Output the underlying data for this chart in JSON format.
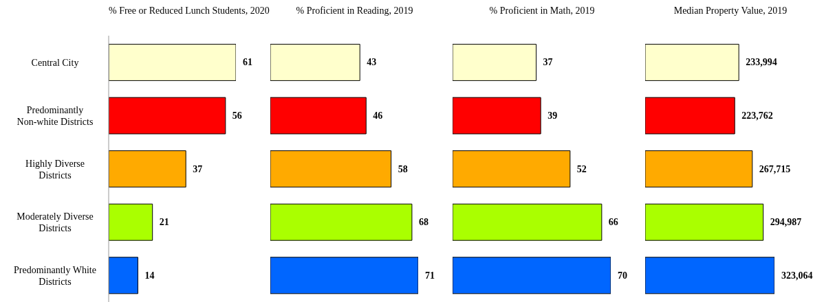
{
  "chart_data": [
    {
      "type": "bar",
      "orientation": "horizontal",
      "title": "% Free or Reduced Lunch Students, 2020",
      "categories": [
        "Central City",
        "Predominantly Non-white Districts",
        "Highly Diverse Districts",
        "Moderately Diverse Districts",
        "Predominantly White Districts"
      ],
      "values": [
        61,
        56,
        37,
        21,
        14
      ],
      "colors": [
        "#ffffcc",
        "#ff0000",
        "#ffaa00",
        "#aaff00",
        "#0066ff"
      ],
      "data_labels": true,
      "tick_labels": "y"
    },
    {
      "type": "bar",
      "orientation": "horizontal",
      "title": "% Proficient in Reading, 2019",
      "values": [
        43,
        46,
        58,
        68,
        71
      ],
      "colors": [
        "#ffffcc",
        "#ff0000",
        "#ffaa00",
        "#aaff00",
        "#0066ff"
      ],
      "data_labels": true,
      "tick_labels": false
    },
    {
      "type": "bar",
      "orientation": "horizontal",
      "title": "% Proficient in Math, 2019",
      "values": [
        37,
        39,
        52,
        66,
        70
      ],
      "colors": [
        "#ffffcc",
        "#ff0000",
        "#ffaa00",
        "#aaff00",
        "#0066ff"
      ],
      "data_labels": true,
      "tick_labels": false
    },
    {
      "type": "bar",
      "orientation": "horizontal",
      "title": "Median Property Value, 2019",
      "values": [
        233994,
        223762,
        267715,
        294987,
        323064
      ],
      "value_labels": [
        "233,994",
        "223,762",
        "267,715",
        "294,987",
        "323,064"
      ],
      "colors": [
        "#ffffcc",
        "#ff0000",
        "#ffaa00",
        "#aaff00",
        "#0066ff"
      ],
      "tick_labels": false
    }
  ]
}
